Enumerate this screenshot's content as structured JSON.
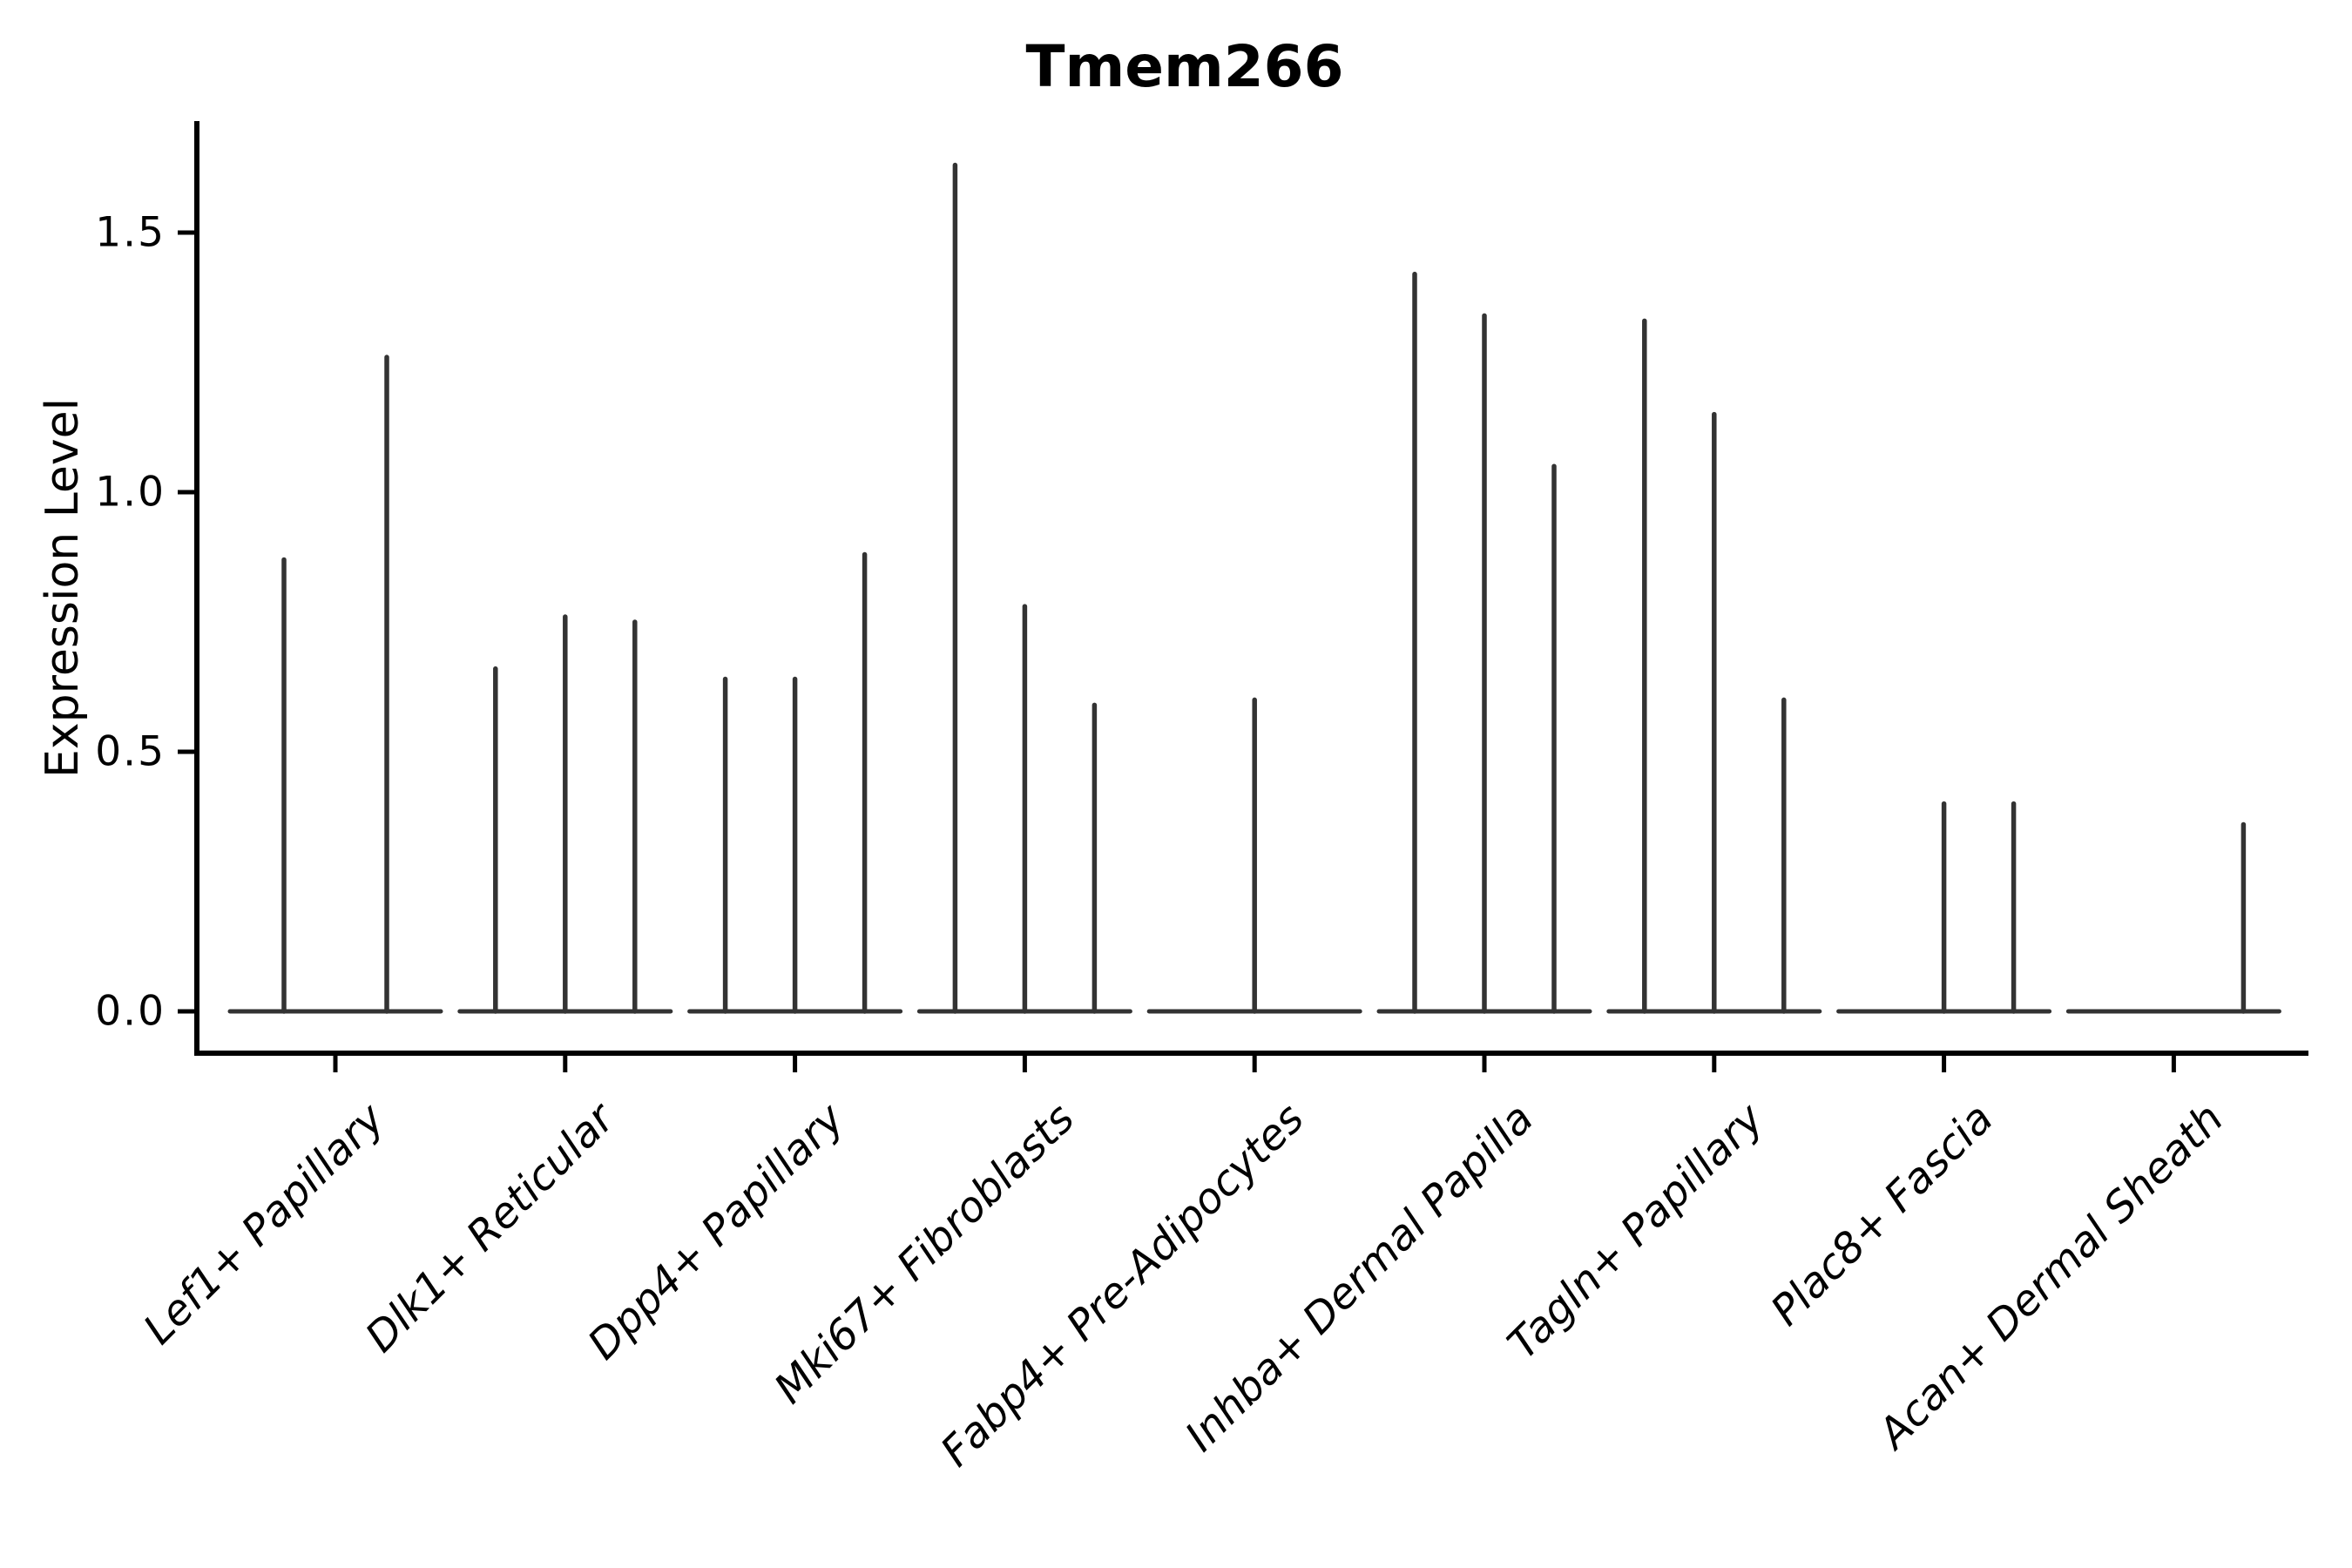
{
  "chart_data": {
    "type": "violin",
    "title": "Tmem266",
    "ylabel": "Expression Level",
    "xlabel": "",
    "yticks": [
      {
        "value": 1.5,
        "label": "1.5"
      },
      {
        "value": 1.0,
        "label": "1.0"
      },
      {
        "value": 0.5,
        "label": "0.5"
      },
      {
        "value": 0.0,
        "label": "0.0"
      }
    ],
    "ylim": [
      -0.08,
      1.71
    ],
    "grid": false,
    "legend": "none",
    "categories": [
      "Lef1+ Papillary",
      "Dlk1+ Reticular",
      "Dpp4+ Papillary",
      "Mki67+ Fibroblasts",
      "Fabp4+ Pre-Adipocytes",
      "Inhba+ Dermal Papilla",
      "Tagln+ Papillary",
      "Plac8+ Fascia",
      "Acan+ Dermal Sheath"
    ],
    "description": "Thin violins per cell type; each violin is a flat base at expression 0 with a narrow spike to its maximum. Spike offsets are px from the category center.",
    "groups": [
      {
        "category": "Lef1+ Papillary",
        "spikes": [
          {
            "offset": -59,
            "max": 0.87
          },
          {
            "offset": 59,
            "max": 1.26
          }
        ]
      },
      {
        "category": "Dlk1+ Reticular",
        "spikes": [
          {
            "offset": -80,
            "max": 0.66
          },
          {
            "offset": 0,
            "max": 0.76
          },
          {
            "offset": 80,
            "max": 0.75
          }
        ]
      },
      {
        "category": "Dpp4+ Papillary",
        "spikes": [
          {
            "offset": -80,
            "max": 0.64
          },
          {
            "offset": 0,
            "max": 0.64
          },
          {
            "offset": 80,
            "max": 0.88
          }
        ]
      },
      {
        "category": "Mki67+ Fibroblasts",
        "spikes": [
          {
            "offset": -80,
            "max": 1.63
          },
          {
            "offset": 0,
            "max": 0.78
          },
          {
            "offset": 80,
            "max": 0.59
          }
        ]
      },
      {
        "category": "Fabp4+ Pre-Adipocytes",
        "spikes": [
          {
            "offset": 0,
            "max": 0.6
          }
        ]
      },
      {
        "category": "Inhba+ Dermal Papilla",
        "spikes": [
          {
            "offset": -80,
            "max": 1.42
          },
          {
            "offset": 0,
            "max": 1.34
          },
          {
            "offset": 80,
            "max": 1.05
          }
        ]
      },
      {
        "category": "Tagln+ Papillary",
        "spikes": [
          {
            "offset": -80,
            "max": 1.33
          },
          {
            "offset": 0,
            "max": 1.15
          },
          {
            "offset": 80,
            "max": 0.6
          }
        ]
      },
      {
        "category": "Plac8+ Fascia",
        "spikes": [
          {
            "offset": 0,
            "max": 0.4
          },
          {
            "offset": 80,
            "max": 0.4
          }
        ]
      },
      {
        "category": "Acan+ Dermal Sheath",
        "spikes": [
          {
            "offset": 80,
            "max": 0.36
          }
        ]
      }
    ],
    "colors": {
      "violin": "#333333",
      "axis": "#000000",
      "text": "#000000",
      "background": "#ffffff"
    }
  }
}
